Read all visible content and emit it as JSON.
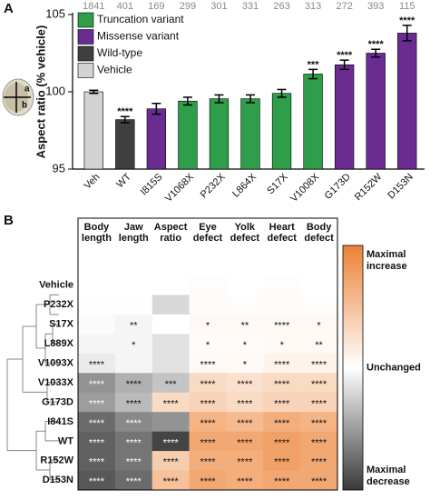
{
  "chart_data": [
    {
      "type": "bar",
      "panel_label": "A",
      "ylabel": "Aspect ratio (% vehicle)",
      "categories": [
        "Veh",
        "WT",
        "I815S",
        "V1068X",
        "P232X",
        "L864X",
        "S17X",
        "V1008X",
        "G173D",
        "R152W",
        "D153N"
      ],
      "values": [
        100,
        98.2,
        98.9,
        99.4,
        99.55,
        99.55,
        99.9,
        101.15,
        101.75,
        102.5,
        103.8
      ],
      "errors": [
        0.1,
        0.2,
        0.35,
        0.25,
        0.25,
        0.25,
        0.25,
        0.3,
        0.3,
        0.25,
        0.5
      ],
      "n": [
        "1841",
        "401",
        "169",
        "299",
        "301",
        "331",
        "263",
        "313",
        "272",
        "393",
        "115"
      ],
      "annotations": [
        null,
        "****",
        null,
        null,
        null,
        null,
        null,
        "***",
        "****",
        "****",
        "****"
      ],
      "colors": [
        "#d3d3d3",
        "#3f3f3f",
        "#6b2c91",
        "#2f9e4a",
        "#2f9e4a",
        "#2f9e4a",
        "#2f9e4a",
        "#2f9e4a",
        "#6b2c91",
        "#6b2c91",
        "#6b2c91"
      ],
      "legend": [
        {
          "name": "Truncation variant",
          "color": "#2f9e4a"
        },
        {
          "name": "Missense variant",
          "color": "#6b2c91"
        },
        {
          "name": "Wild-type",
          "color": "#3f3f3f"
        },
        {
          "name": "Vehicle",
          "color": "#d3d3d3"
        }
      ],
      "inset_labels": [
        "a",
        "b"
      ],
      "ylim": [
        95,
        105
      ],
      "yticks": [
        95,
        100,
        105
      ]
    },
    {
      "type": "heatmap",
      "panel_label": "B",
      "columns": [
        "Body length",
        "Jaw length",
        "Aspect ratio",
        "Eye defect",
        "Yolk defect",
        "Heart defect",
        "Body defect"
      ],
      "rows": [
        "Vehicle",
        "P232X",
        "S17X",
        "L889X",
        "V1093X",
        "V1033X",
        "G173D",
        "I841S",
        "WT",
        "R152W",
        "D153N"
      ],
      "values": [
        [
          0,
          0,
          0,
          0.02,
          0,
          0.02,
          0
        ],
        [
          0.02,
          0.01,
          -0.2,
          0.03,
          0.02,
          0.03,
          0.02
        ],
        [
          -0.02,
          -0.05,
          0,
          0.05,
          0.05,
          0.05,
          0.05
        ],
        [
          -0.05,
          -0.05,
          -0.15,
          0.03,
          0.03,
          0.05,
          0.05
        ],
        [
          -0.1,
          -0.05,
          -0.15,
          0.05,
          0.05,
          0.1,
          0.1
        ],
        [
          -0.55,
          -0.4,
          -0.3,
          0.3,
          0.25,
          0.3,
          0.3
        ],
        [
          -0.5,
          -0.35,
          0.3,
          0.35,
          0.3,
          0.35,
          0.35
        ],
        [
          -0.75,
          -0.6,
          -0.55,
          0.6,
          0.55,
          0.65,
          0.6
        ],
        [
          -0.8,
          -0.7,
          -0.95,
          0.7,
          0.7,
          0.75,
          0.7
        ],
        [
          -0.8,
          -0.7,
          0.4,
          0.65,
          0.65,
          0.75,
          0.7
        ],
        [
          -0.85,
          -0.75,
          0.5,
          0.7,
          0.65,
          0.7,
          0.7
        ]
      ],
      "stars": [
        [
          null,
          null,
          null,
          null,
          null,
          null,
          null
        ],
        [
          null,
          null,
          null,
          null,
          null,
          null,
          null
        ],
        [
          null,
          "**",
          null,
          "*",
          "**",
          "****",
          "*"
        ],
        [
          null,
          "*",
          null,
          "*",
          "*",
          "*",
          "**"
        ],
        [
          "****",
          null,
          null,
          "****",
          "*",
          "****",
          "****"
        ],
        [
          "****",
          "****",
          "***",
          "****",
          "****",
          "****",
          "****"
        ],
        [
          "****",
          "****",
          "****",
          "****",
          "****",
          "****",
          "****"
        ],
        [
          "****",
          "****",
          null,
          "****",
          "****",
          "****",
          "****"
        ],
        [
          "****",
          "****",
          "****",
          "****",
          "****",
          "****",
          "****"
        ],
        [
          "****",
          "****",
          "****",
          "****",
          "****",
          "****",
          "****"
        ],
        [
          "****",
          "****",
          "****",
          "****",
          "****",
          "****",
          "****"
        ]
      ],
      "cmap": [
        "#3a3a3a",
        "#ffffff",
        "#ec8236"
      ],
      "clim": [
        -1,
        1
      ],
      "cticks": [
        {
          "value": 1,
          "label": "Maximal increase"
        },
        {
          "value": 0,
          "label": "Unchanged"
        },
        {
          "value": -1,
          "label": "Maximal decrease"
        }
      ]
    }
  ]
}
